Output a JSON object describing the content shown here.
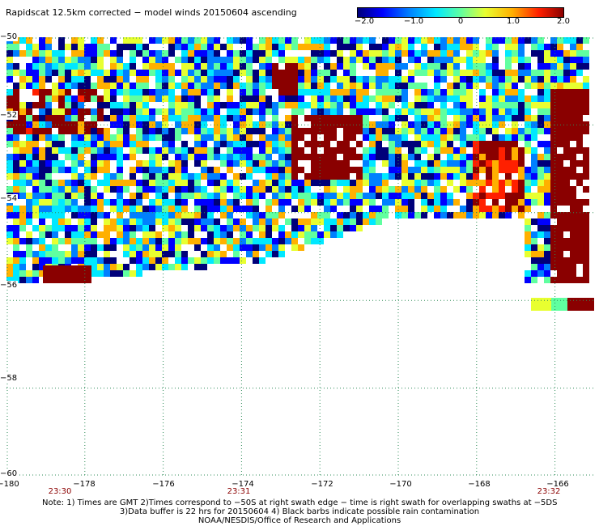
{
  "title": "Rapidscat 12.5km corrected − model winds 20150604 ascending",
  "colorbar": {
    "labels": [
      "−2.0",
      "−1.0",
      "0",
      "1.0",
      "2.0"
    ],
    "values": [
      -2.0,
      -1.0,
      0,
      1.0,
      2.0
    ],
    "range": [
      -2.0,
      2.0
    ],
    "colors": [
      "#00007a",
      "#0000ff",
      "#0080ff",
      "#00e8ff",
      "#60ffa0",
      "#e8ff30",
      "#ffb000",
      "#ff2000",
      "#8a0000"
    ]
  },
  "map": {
    "lon_range": [
      -180,
      -165
    ],
    "lat_range": [
      -60,
      -50
    ],
    "x_ticks": [
      "−180",
      "−178",
      "−176",
      "−174",
      "−172",
      "−170",
      "−168",
      "−166"
    ],
    "x_tick_values": [
      -180,
      -178,
      -176,
      -174,
      -172,
      -170,
      -168,
      -166
    ],
    "y_ticks": [
      "−50",
      "−52",
      "−54",
      "−56",
      "−58",
      "−60"
    ],
    "y_tick_values": [
      -50,
      -52,
      -54,
      -56,
      -58,
      -60
    ],
    "grid_line_color": "#2e8b57",
    "times": [
      "23:30",
      "23:31",
      "23:32"
    ],
    "time_lons": [
      -178.5,
      -174.0,
      -165.8
    ]
  },
  "notes": [
    "Note: 1) Times are GMT 2)Times correspond to −50S at right swath edge − time is right swath for overlapping swaths at −5DS",
    "3)Data buffer is 22 hrs for 20150604 4) Black barbs indicate possible rain contamination",
    "NOAA/NESDIS/Office of Research and Applications"
  ]
}
